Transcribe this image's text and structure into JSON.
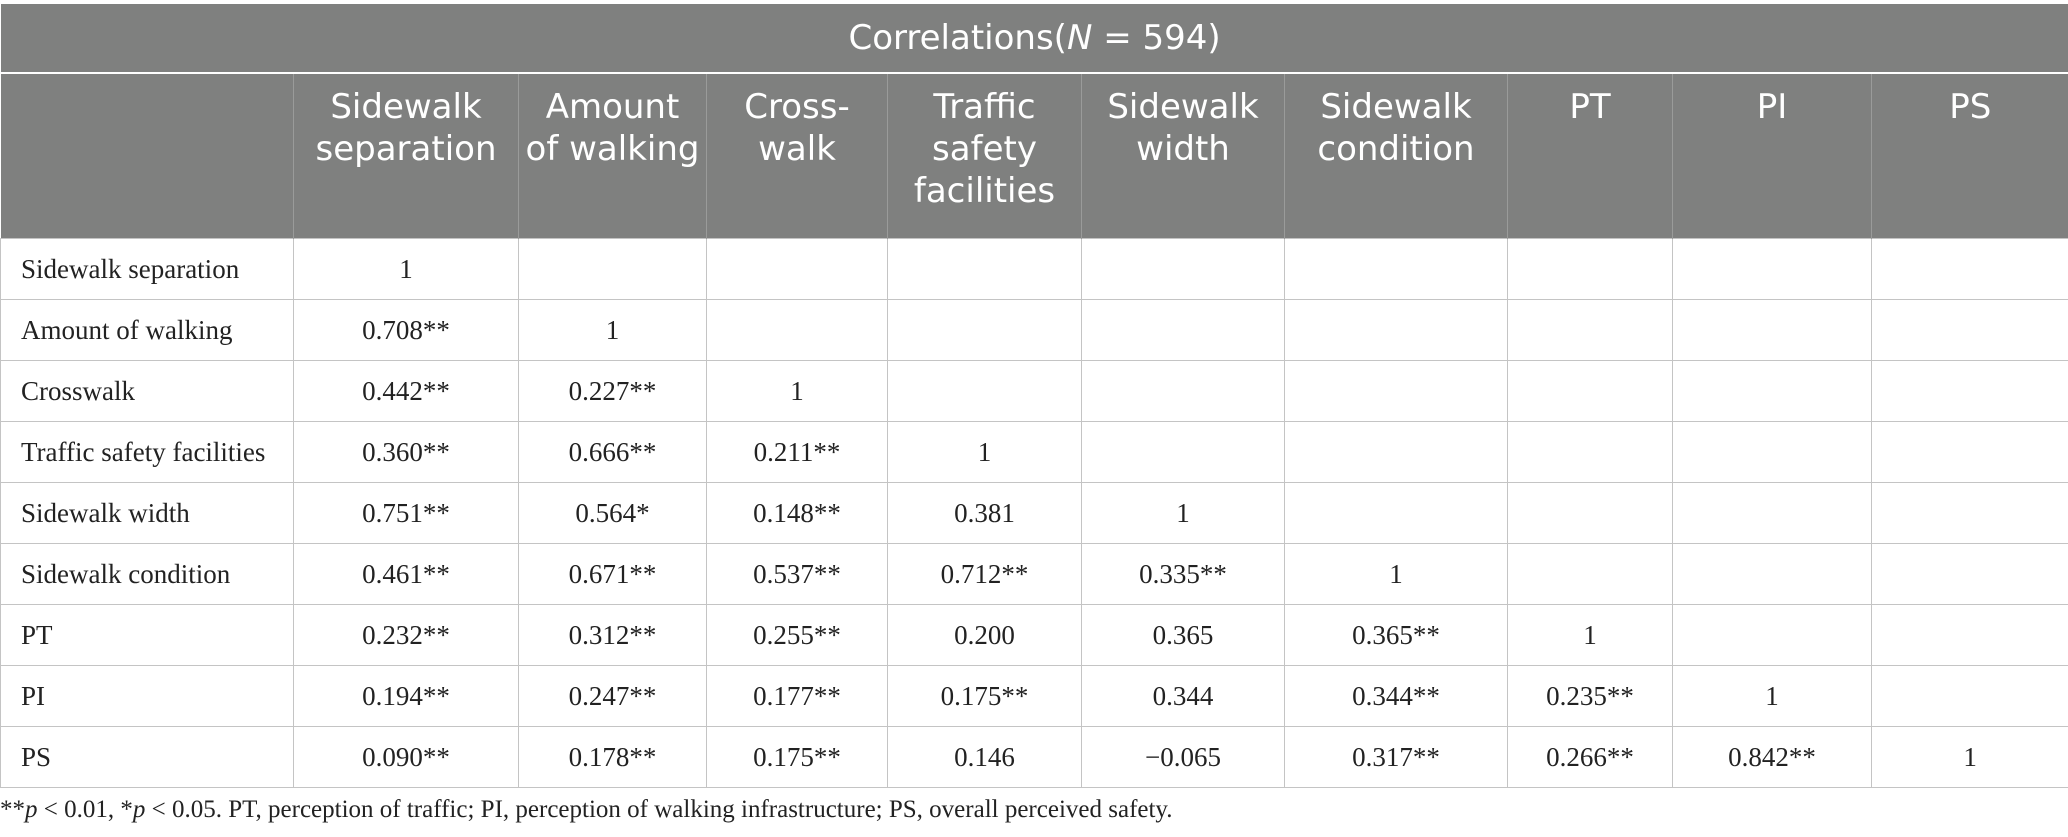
{
  "title_prefix": "Correlations(",
  "title_n": "N",
  "title_suffix": " = 594)",
  "columns": [
    "",
    "Sidewalk separation",
    "Amount of walking",
    "Cross-walk",
    "Traffic safety facilities",
    "Sidewalk width",
    "Sidewalk condition",
    "PT",
    "PI",
    "PS"
  ],
  "rows": [
    [
      "Sidewalk separation",
      "1",
      "",
      "",
      "",
      "",
      "",
      "",
      "",
      ""
    ],
    [
      "Amount of walking",
      "0.708**",
      "1",
      "",
      "",
      "",
      "",
      "",
      "",
      ""
    ],
    [
      "Crosswalk",
      "0.442**",
      "0.227**",
      "1",
      "",
      "",
      "",
      "",
      "",
      ""
    ],
    [
      "Traffic safety facilities",
      "0.360**",
      "0.666**",
      "0.211**",
      "1",
      "",
      "",
      "",
      "",
      ""
    ],
    [
      "Sidewalk width",
      "0.751**",
      "0.564*",
      "0.148**",
      "0.381",
      "1",
      "",
      "",
      "",
      ""
    ],
    [
      "Sidewalk condition",
      "0.461**",
      "0.671**",
      "0.537**",
      "0.712**",
      "0.335**",
      "1",
      "",
      "",
      ""
    ],
    [
      "PT",
      "0.232**",
      "0.312**",
      "0.255**",
      "0.200",
      "0.365",
      "0.365**",
      "1",
      "",
      ""
    ],
    [
      "PI",
      "0.194**",
      "0.247**",
      "0.177**",
      "0.175**",
      "0.344",
      "0.344**",
      "0.235**",
      "1",
      ""
    ],
    [
      "PS",
      "0.090**",
      "0.178**",
      "0.175**",
      "0.146",
      "−0.065",
      "0.317**",
      "0.266**",
      "0.842**",
      "1"
    ]
  ],
  "footnote": {
    "a1": "**",
    "p": "p",
    "a2": " < 0.01, *",
    "a3": " < 0.05. PT, perception of traffic; PI, perception of walking infrastructure; PS, overall perceived safety."
  }
}
